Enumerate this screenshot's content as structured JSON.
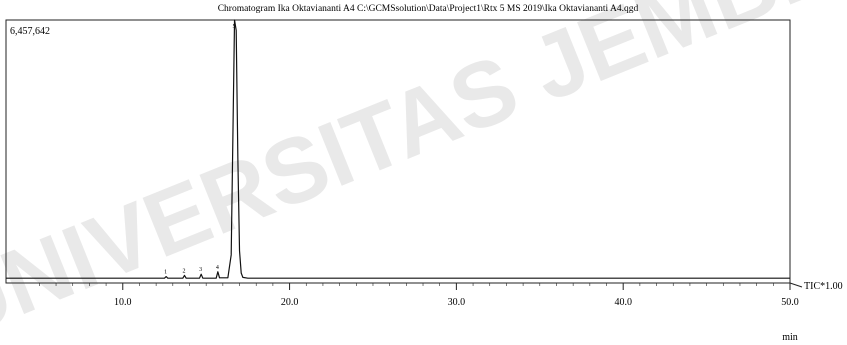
{
  "watermark": {
    "text": "UNIVERSITAS JEMBER",
    "color": "#e9e9e9"
  },
  "chart_data": {
    "type": "line",
    "title": "Chromatogram Ika Oktaviananti A4 C:\\GCMSsolution\\Data\\Project1\\Rtx 5 MS 2019\\Ika Oktaviananti A4.qgd",
    "y_max_label": "6,457,642",
    "xlabel": "min",
    "xlim": [
      3.0,
      50.0
    ],
    "x_ticks": [
      {
        "value": 10.0,
        "label": "10.0"
      },
      {
        "value": 20.0,
        "label": "20.0"
      },
      {
        "value": 30.0,
        "label": "30.0"
      },
      {
        "value": 40.0,
        "label": "40.0"
      },
      {
        "value": 50.0,
        "label": "50.0"
      }
    ],
    "ylim": [
      0,
      6457642
    ],
    "trace_label": "TIC*1.00",
    "line_color": "#111111",
    "series": [
      {
        "x": [
          3.0,
          12.5,
          12.6,
          12.7,
          13.6,
          13.7,
          13.8,
          14.6,
          14.7,
          14.8,
          15.6,
          15.7,
          15.8,
          16.3,
          16.5,
          16.6,
          16.7,
          16.8,
          16.9,
          17.0,
          17.1,
          17.2,
          17.5,
          30.0,
          45.0,
          50.0
        ],
        "y": [
          20000,
          20000,
          60000,
          20000,
          20000,
          90000,
          20000,
          20000,
          120000,
          20000,
          20000,
          180000,
          30000,
          30000,
          600000,
          3500000,
          6457642,
          6200000,
          3000000,
          700000,
          150000,
          40000,
          20000,
          20000,
          20000,
          20000
        ]
      }
    ],
    "peak_labels": [
      {
        "x": 12.6,
        "label": "1"
      },
      {
        "x": 13.7,
        "label": "2"
      },
      {
        "x": 14.7,
        "label": "3"
      },
      {
        "x": 15.7,
        "label": "4"
      },
      {
        "x": 16.7,
        "label": "5"
      }
    ]
  }
}
